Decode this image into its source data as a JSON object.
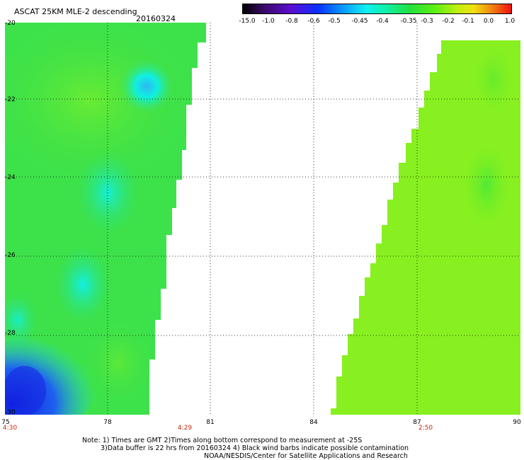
{
  "title": "ASCAT 25KM MLE-2 descending",
  "date": "20160324",
  "legend": {
    "labels": [
      "-15.0",
      "-1.0",
      "-0.8",
      "-0.6",
      "-0.5",
      "-0.45",
      "-0.4",
      "-0.35",
      "-0.3",
      "-0.2",
      "-0.1",
      "0.0",
      "1.0"
    ]
  },
  "axes": {
    "lat_labels": [
      "-20",
      "-22",
      "-24",
      "-26",
      "-28",
      "-30"
    ],
    "lon_labels": [
      "75",
      "78",
      "81",
      "84",
      "87",
      "90"
    ]
  },
  "times": [
    "4:30",
    "4:29",
    "2:50"
  ],
  "notes": {
    "line1": "Note: 1) Times are GMT 2)Times along bottom correspond to measurement at -25S",
    "line2": "3)Data buffer is 22 hrs from 20160324 4) Black wind barbs indicate possible contamination",
    "line3": "NOAA/NESDIS/Center for Satellite Applications and Research"
  },
  "colors": {
    "swath_west": "#2ee05a",
    "swath_east": "#8cf21e",
    "high_error": "#1a2fe0",
    "cyan_patch": "#14f0d2"
  }
}
